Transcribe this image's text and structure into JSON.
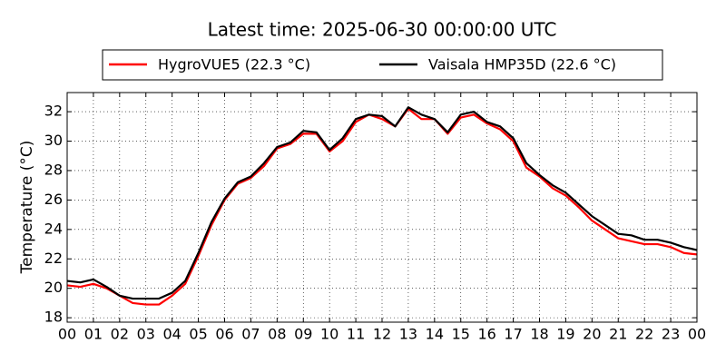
{
  "chart_data": {
    "type": "line",
    "title": "Latest time: 2025-06-30 00:00:00 UTC",
    "ylabel": "Temperature (°C)",
    "x": [
      0,
      0.5,
      1,
      1.5,
      2,
      2.5,
      3,
      3.5,
      4,
      4.5,
      5,
      5.5,
      6,
      6.5,
      7,
      7.5,
      8,
      8.5,
      9,
      9.5,
      10,
      10.5,
      11,
      11.5,
      12,
      12.5,
      13,
      13.5,
      14,
      14.5,
      15,
      15.5,
      16,
      16.5,
      17,
      17.5,
      18,
      18.5,
      19,
      19.5,
      20,
      20.5,
      21,
      21.5,
      22,
      22.5,
      23,
      23.5,
      24
    ],
    "series": [
      {
        "name": "HygroVUE5 (22.3 °C)",
        "color": "#ff0000",
        "values": [
          20.2,
          20.1,
          20.3,
          20.0,
          19.5,
          19.0,
          18.9,
          18.9,
          19.5,
          20.3,
          22.2,
          24.3,
          26.0,
          27.1,
          27.5,
          28.3,
          29.5,
          29.8,
          30.5,
          30.5,
          29.3,
          30.0,
          31.3,
          31.8,
          31.5,
          31.0,
          32.2,
          31.5,
          31.5,
          30.5,
          31.6,
          31.8,
          31.2,
          30.8,
          30.0,
          28.2,
          27.6,
          26.8,
          26.3,
          25.5,
          24.6,
          24.0,
          23.4,
          23.2,
          23.0,
          23.0,
          22.8,
          22.4,
          22.3
        ]
      },
      {
        "name": "Vaisala HMP35D (22.6 °C)",
        "color": "#000000",
        "values": [
          20.5,
          20.4,
          20.6,
          20.1,
          19.5,
          19.3,
          19.3,
          19.3,
          19.7,
          20.5,
          22.4,
          24.5,
          26.1,
          27.2,
          27.6,
          28.5,
          29.6,
          29.9,
          30.7,
          30.6,
          29.4,
          30.2,
          31.5,
          31.8,
          31.7,
          31.0,
          32.3,
          31.8,
          31.5,
          30.6,
          31.8,
          32.0,
          31.3,
          31.0,
          30.2,
          28.5,
          27.7,
          27.0,
          26.5,
          25.7,
          24.9,
          24.3,
          23.7,
          23.6,
          23.3,
          23.3,
          23.1,
          22.8,
          22.6
        ]
      }
    ],
    "xlim": [
      0,
      24
    ],
    "xticks": [
      {
        "value": 0,
        "label": "00"
      },
      {
        "value": 1,
        "label": "01"
      },
      {
        "value": 2,
        "label": "02"
      },
      {
        "value": 3,
        "label": "03"
      },
      {
        "value": 4,
        "label": "04"
      },
      {
        "value": 5,
        "label": "05"
      },
      {
        "value": 6,
        "label": "06"
      },
      {
        "value": 7,
        "label": "07"
      },
      {
        "value": 8,
        "label": "08"
      },
      {
        "value": 9,
        "label": "09"
      },
      {
        "value": 10,
        "label": "10"
      },
      {
        "value": 11,
        "label": "11"
      },
      {
        "value": 12,
        "label": "12"
      },
      {
        "value": 13,
        "label": "13"
      },
      {
        "value": 14,
        "label": "14"
      },
      {
        "value": 15,
        "label": "15"
      },
      {
        "value": 16,
        "label": "16"
      },
      {
        "value": 17,
        "label": "17"
      },
      {
        "value": 18,
        "label": "18"
      },
      {
        "value": 19,
        "label": "19"
      },
      {
        "value": 20,
        "label": "20"
      },
      {
        "value": 21,
        "label": "21"
      },
      {
        "value": 22,
        "label": "22"
      },
      {
        "value": 23,
        "label": "23"
      },
      {
        "value": 24,
        "label": "00"
      }
    ],
    "ylim": [
      17.7,
      33.3
    ],
    "yticks": [
      18,
      20,
      22,
      24,
      26,
      28,
      30,
      32
    ],
    "grid": true
  }
}
